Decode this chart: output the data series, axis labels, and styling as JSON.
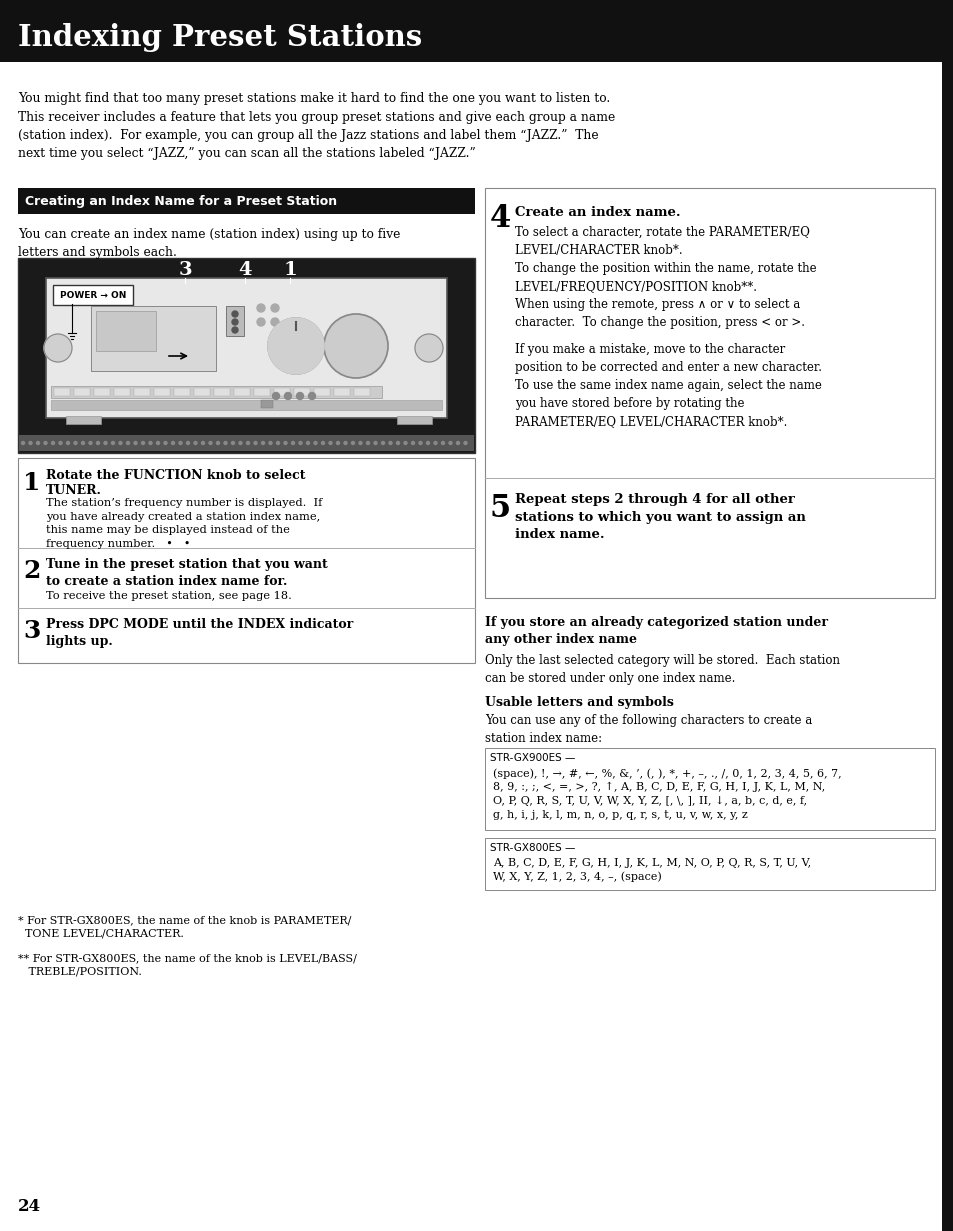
{
  "title": "Indexing Preset Stations",
  "title_bg": "#111111",
  "title_color": "#ffffff",
  "page_bg": "#ffffff",
  "page_number": "24",
  "intro_text": "You might find that too many preset stations make it hard to find the one you want to listen to.\nThis receiver includes a feature that lets you group preset stations and give each group a name\n(station index).  For example, you can group all the Jazz stations and label them “JAZZ.”  The\nnext time you select “JAZZ,” you can scan all the stations labeled “JAZZ.”",
  "section_header": "Creating an Index Name for a Preset Station",
  "section_header_bg": "#111111",
  "section_header_color": "#ffffff",
  "left_intro": "You can create an index name (station index) using up to five\nletters and symbols each.",
  "step1_num": "1",
  "step1_bold": "Rotate the FUNCTION knob to select\nTUNER.",
  "step1_text": "The station’s frequency number is displayed.  If\nyou have already created a station index name,\nthis name may be displayed instead of the\nfrequency number.   •   •",
  "step2_num": "2",
  "step2_bold": "Tune in the preset station that you want\nto create a station index name for.",
  "step2_text": "To receive the preset station, see page 18.",
  "step3_num": "3",
  "step3_bold": "Press DPC MODE until the INDEX indicator\nlights up.",
  "step4_num": "4",
  "step4_bold": "Create an index name.",
  "step4_text": "To select a character, rotate the PARAMETER/EQ\nLEVEL/CHARACTER knob*.\nTo change the position within the name, rotate the\nLEVEL/FREQUENCY/POSITION knob**.\nWhen using the remote, press ∧ or ∨ to select a\ncharacter.  To change the position, press < or >.",
  "step4_text2": "If you make a mistake, move to the character\nposition to be corrected and enter a new character.\nTo use the same index name again, select the name\nyou have stored before by rotating the\nPARAMETER/EQ LEVEL/CHARACTER knob*.",
  "step5_num": "5",
  "step5_bold": "Repeat steps 2 through 4 for all other\nstations to which you want to assign an\nindex name.",
  "right_section2_title": "If you store an already categorized station under\nany other index name",
  "right_section2_text": "Only the last selected category will be stored.  Each station\ncan be stored under only one index name.",
  "usable_title": "Usable letters and symbols",
  "usable_text": "You can use any of the following characters to create a\nstation index name:",
  "strGX900ES_label": "STR-GX900ES —",
  "strGX900ES_chars": "(space), !, →, #, ←, %, &, ’, (, ), *, +, –, ., /, 0, 1, 2, 3, 4, 5, 6, 7,\n8, 9, :, ;, <, =, >, ?, ↑, A, B, C, D, E, F, G, H, I, J, K, L, M, N,\nO, P, Q, R, S, T, U, V, W, X, Y, Z, [, \\, ], II, ↓, a, b, c, d, e, f,\ng, h, i, j, k, l, m, n, o, p, q, r, s, t, u, v, w, x, y, z",
  "strGX800ES_label": "STR-GX800ES —",
  "strGX800ES_chars": "A, B, C, D, E, F, G, H, I, J, K, L, M, N, O, P, Q, R, S, T, U, V,\nW, X, Y, Z, 1, 2, 3, 4, –, (space)",
  "footnote1": "* For STR-GX800ES, the name of the knob is PARAMETER/\n  TONE LEVEL/CHARACTER.",
  "footnote2": "** For STR-GX800ES, the name of the knob is LEVEL/BASS/\n   TREBLE/POSITION."
}
